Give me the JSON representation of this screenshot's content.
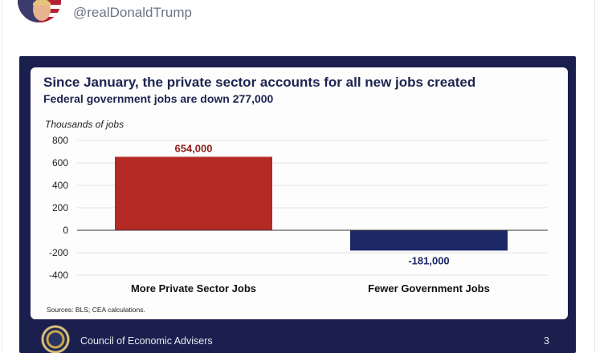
{
  "post": {
    "handle": "@realDonaldTrump"
  },
  "slide": {
    "title": "Since January, the private sector accounts for all new jobs created",
    "subtitle": "Federal government jobs are down 277,000",
    "source": "Sources: BLS; CEA calculations.",
    "footer_org": "Council of Economic Advisers",
    "page_number": "3"
  },
  "colors": {
    "private_bar": "#b52a25",
    "government_bar": "#1d2866",
    "footer_bg": "#1b1f4d",
    "title_text": "#1c2450"
  },
  "chart_data": {
    "type": "bar",
    "title": "Since January, the private sector accounts for all new jobs created",
    "subtitle": "Federal government jobs are down 277,000",
    "ylabel": "Thousands of jobs",
    "xlabel": "",
    "categories": [
      "More Private Sector Jobs",
      "Fewer Government Jobs"
    ],
    "values": [
      654,
      -181
    ],
    "data_labels": [
      "654,000",
      "-181,000"
    ],
    "ylim": [
      -400,
      800
    ],
    "yticks": [
      800,
      600,
      400,
      200,
      0,
      -200,
      -400
    ],
    "ytick_labels": [
      "800",
      "600",
      "400",
      "200",
      "0",
      "-200",
      "-400"
    ],
    "grid": true,
    "legend": "none"
  }
}
